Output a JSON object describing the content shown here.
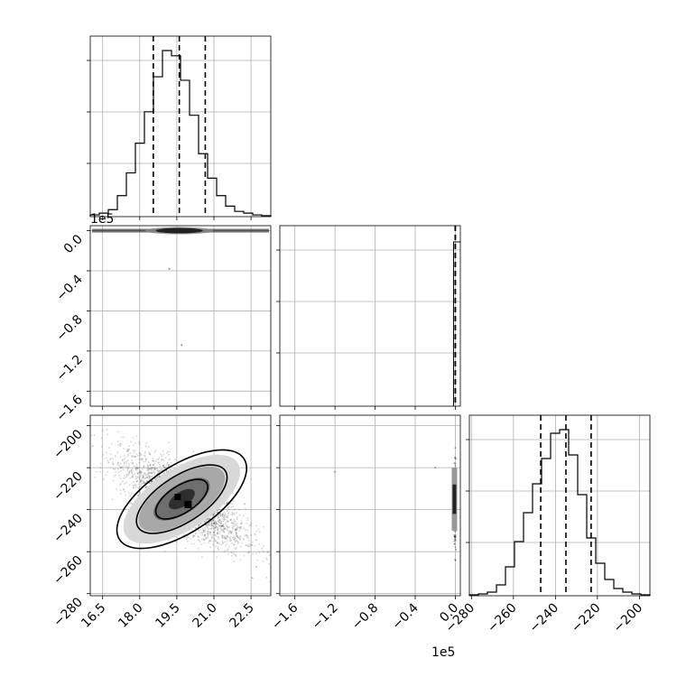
{
  "chart_data": {
    "type": "corner",
    "parameters": [
      {
        "ticks": [
          16.5,
          18.0,
          19.5,
          21.0,
          22.5
        ],
        "offset_text": "1e5",
        "range": [
          16.0,
          23.3
        ]
      },
      {
        "ticks": [
          -1.6,
          -1.2,
          -0.8,
          -0.4,
          0.0
        ],
        "offset_text": "1e5",
        "range": [
          -1.75,
          0.05
        ]
      },
      {
        "ticks": [
          -280,
          -260,
          -240,
          -220,
          -200
        ],
        "offset_text": "",
        "range": [
          -281,
          -195
        ]
      }
    ],
    "quantiles": [
      [
        18.55,
        19.6,
        20.65
      ],
      [
        -0.0015,
        -0.0008,
        -0.0002
      ],
      [
        -247,
        -235,
        -223
      ]
    ],
    "histograms": [
      {
        "edges_start": 16.0,
        "bin_width": 0.365,
        "counts": [
          0.01,
          0.02,
          0.04,
          0.12,
          0.25,
          0.42,
          0.6,
          0.8,
          0.95,
          0.92,
          0.78,
          0.58,
          0.36,
          0.22,
          0.12,
          0.06,
          0.03,
          0.02,
          0.01,
          0.005
        ]
      },
      {
        "edges_start": -0.05,
        "bin_width": 0.1,
        "counts": [
          1
        ]
      },
      {
        "edges_start": -281,
        "bin_width": 4.3,
        "counts": [
          0.005,
          0.01,
          0.02,
          0.06,
          0.16,
          0.3,
          0.46,
          0.62,
          0.76,
          0.9,
          0.92,
          0.78,
          0.56,
          0.32,
          0.18,
          0.09,
          0.04,
          0.02,
          0.01,
          0.005
        ]
      }
    ],
    "contour_21": {
      "center": [
        19.7,
        -235
      ],
      "angle": -33,
      "radii": [
        [
          1.2,
          6.5
        ],
        [
          2.1,
          11
        ],
        [
          3.0,
          16
        ]
      ]
    },
    "outliers_10": [
      [
        19.2,
        -0.38
      ],
      [
        19.7,
        -1.14
      ]
    ]
  }
}
